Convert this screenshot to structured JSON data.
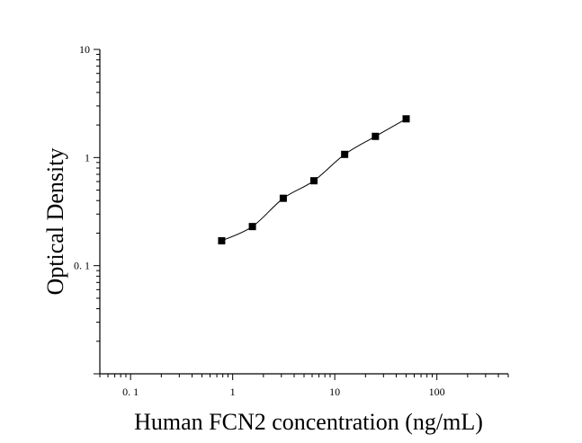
{
  "chart_data": {
    "type": "scatter",
    "title": "",
    "xlabel": "Human FCN2 concentration (ng/mL)",
    "ylabel": "Optical Density",
    "x_scale": "log",
    "y_scale": "log",
    "xlim": [
      0.05,
      500
    ],
    "ylim": [
      0.01,
      10
    ],
    "x_ticks": [
      {
        "value": 0.1,
        "label": "0. 1"
      },
      {
        "value": 1,
        "label": "1"
      },
      {
        "value": 10,
        "label": "10"
      },
      {
        "value": 100,
        "label": "100"
      }
    ],
    "y_ticks": [
      {
        "value": 0.1,
        "label": "0. 1"
      },
      {
        "value": 1,
        "label": "1"
      },
      {
        "value": 10,
        "label": "10"
      }
    ],
    "grid": false,
    "series": [
      {
        "x": [
          0.78,
          1.56,
          3.13,
          6.25,
          12.5,
          25,
          50
        ],
        "y": [
          0.17,
          0.23,
          0.42,
          0.61,
          1.07,
          1.57,
          2.28
        ],
        "marker": "square",
        "fit_curve": true
      }
    ]
  }
}
